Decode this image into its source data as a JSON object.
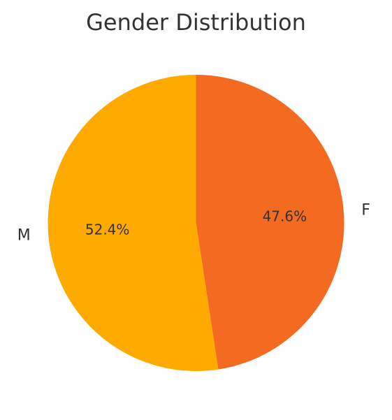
{
  "chart_data": {
    "type": "pie",
    "title": "Gender Distribution",
    "categories": [
      "F",
      "M"
    ],
    "values": [
      47.6,
      52.4
    ],
    "percent_labels": [
      "47.6%",
      "52.4%"
    ],
    "colors": [
      "#F46A21",
      "#FFAA00"
    ],
    "start_angle": "top, clockwise",
    "legend": "none"
  }
}
